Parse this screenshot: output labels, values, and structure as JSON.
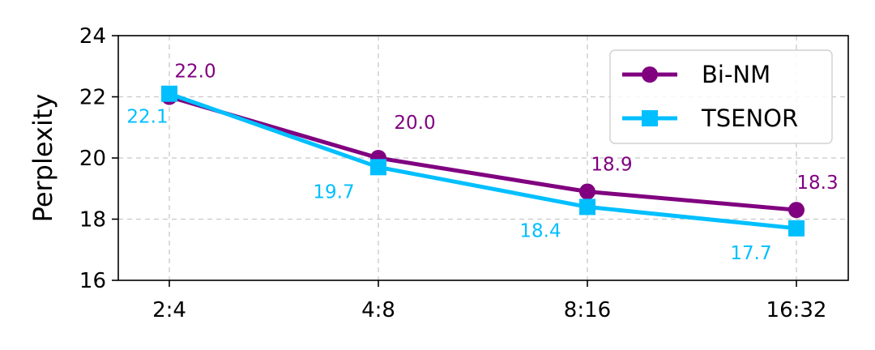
{
  "chart_data": {
    "type": "line",
    "title": "",
    "xlabel": "",
    "ylabel": "Perplexity",
    "categories": [
      "2:4",
      "4:8",
      "8:16",
      "16:32"
    ],
    "ylim": [
      16,
      24
    ],
    "yticks": [
      16,
      18,
      20,
      22,
      24
    ],
    "grid": true,
    "legend_position": "top-right",
    "series": [
      {
        "name": "Bi-NM",
        "color": "#800080",
        "marker": "circle",
        "values": [
          22.0,
          20.0,
          18.9,
          18.3
        ],
        "value_labels": [
          "22.0",
          "20.0",
          "18.9",
          "18.3"
        ]
      },
      {
        "name": "TSENOR",
        "color": "#00BFFF",
        "marker": "square",
        "values": [
          22.1,
          19.7,
          18.4,
          17.7
        ],
        "value_labels": [
          "22.1",
          "19.7",
          "18.4",
          "17.7"
        ]
      }
    ]
  }
}
